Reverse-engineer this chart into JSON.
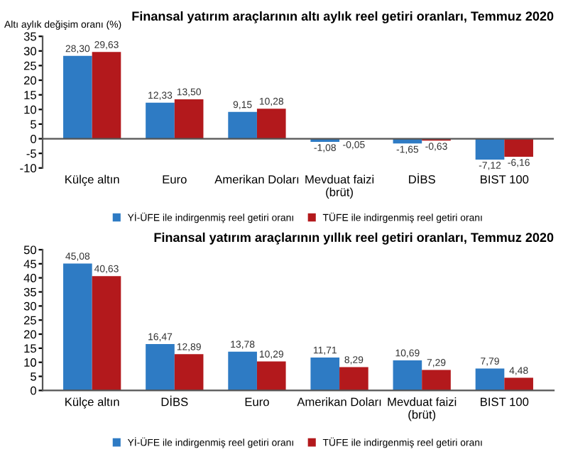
{
  "chart_data": [
    {
      "type": "bar",
      "title": "Finansal yatırım araçlarının altı aylık reel getiri oranları, Temmuz 2020",
      "ylabel": "Altı aylık değişim oranı (%)",
      "categories": [
        "Külçe altın",
        "Euro",
        "Amerikan Doları",
        "Mevduat faizi\n(brüt)",
        "DİBS",
        "BIST 100"
      ],
      "series": [
        {
          "name": "Yİ-ÜFE ile indirgenmiş reel getiri oranı",
          "color": "#2e7bc4",
          "values": [
            28.3,
            12.33,
            9.15,
            -1.08,
            -1.65,
            -7.12
          ],
          "value_labels": [
            "28,30",
            "12,33",
            "9,15",
            "-1,08",
            "-1,65",
            "-7,12"
          ]
        },
        {
          "name": "TÜFE ile indirgenmiş reel getiri oranı",
          "color": "#b3191c",
          "values": [
            29.63,
            13.5,
            10.28,
            -0.05,
            -0.63,
            -6.16
          ],
          "value_labels": [
            "29,63",
            "13,50",
            "10,28",
            "-0,05",
            "-0,63",
            "-6,16"
          ]
        }
      ],
      "ylim": [
        -10,
        35
      ],
      "yticks": [
        -10,
        -5,
        0,
        5,
        10,
        15,
        20,
        25,
        30,
        35
      ],
      "legend": "bottom"
    },
    {
      "type": "bar",
      "title": "Finansal yatırım araçlarının yıllık reel getiri oranları, Temmuz 2020",
      "categories": [
        "Külçe altın",
        "DİBS",
        "Euro",
        "Amerikan Doları",
        "Mevduat faizi\n(brüt)",
        "BIST 100"
      ],
      "series": [
        {
          "name": "Yİ-ÜFE ile indirgenmiş reel getiri oranı",
          "color": "#2e7bc4",
          "values": [
            45.08,
            16.47,
            13.78,
            11.71,
            10.69,
            7.79
          ],
          "value_labels": [
            "45,08",
            "16,47",
            "13,78",
            "11,71",
            "10,69",
            "7,79"
          ]
        },
        {
          "name": "TÜFE ile indirgenmiş reel getiri oranı",
          "color": "#b3191c",
          "values": [
            40.63,
            12.89,
            10.29,
            8.29,
            7.29,
            4.48
          ],
          "value_labels": [
            "40,63",
            "12,89",
            "10,29",
            "8,29",
            "7,29",
            "4,48"
          ]
        }
      ],
      "ylim": [
        0,
        50
      ],
      "yticks": [
        0,
        5,
        10,
        15,
        20,
        25,
        30,
        35,
        40,
        45,
        50
      ],
      "legend": "bottom"
    }
  ]
}
